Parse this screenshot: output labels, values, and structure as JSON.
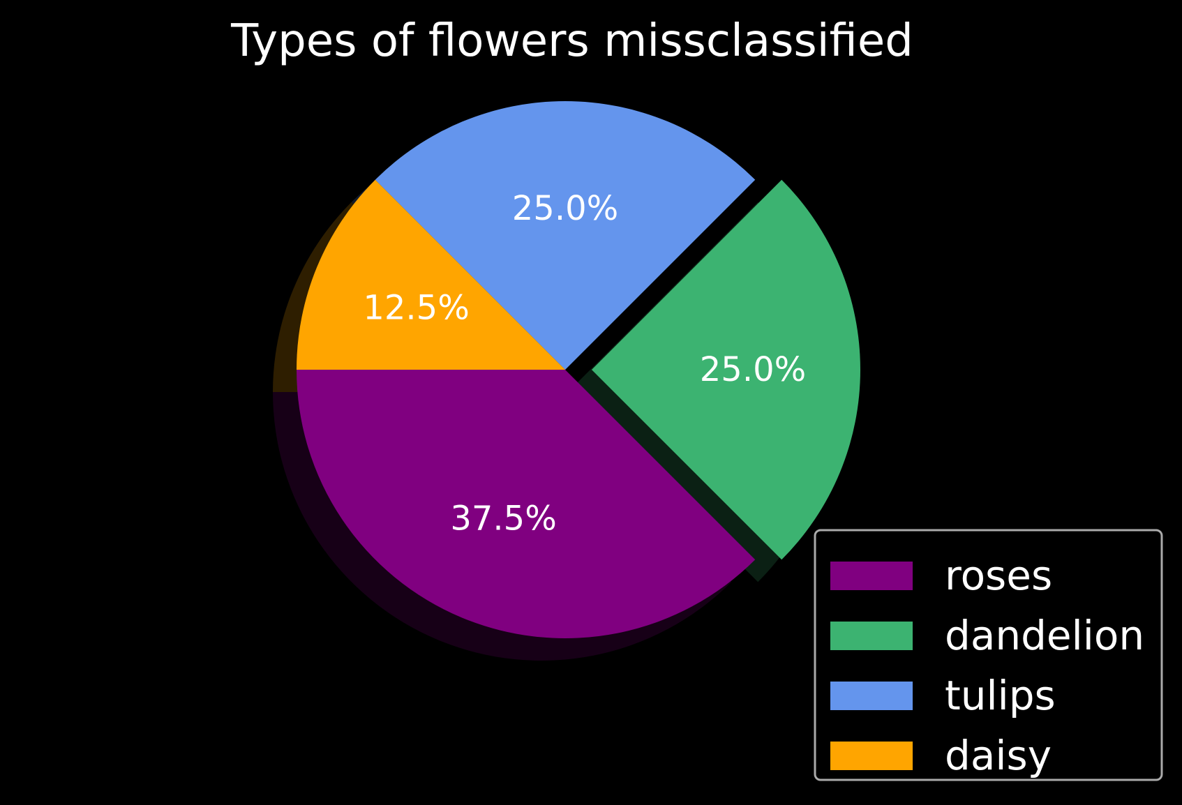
{
  "chart_data": {
    "type": "pie",
    "title": "Types of flowers missclassified",
    "slices": [
      {
        "label": "roses",
        "value": 37.5,
        "pct_label": "37.5%",
        "color": "#800080",
        "exploded": false
      },
      {
        "label": "dandelion",
        "value": 25.0,
        "pct_label": "25.0%",
        "color": "#3cb371",
        "exploded": true
      },
      {
        "label": "tulips",
        "value": 25.0,
        "pct_label": "25.0%",
        "color": "#6495ed",
        "exploded": false
      },
      {
        "label": "daisy",
        "value": 12.5,
        "pct_label": "12.5%",
        "color": "#ffa500",
        "exploded": false
      }
    ],
    "start_angle_deg": -180,
    "direction": "counterclockwise",
    "shadow": true,
    "legend_position": "lower-right",
    "background": "#000000",
    "text_color": "#ffffff",
    "legend_border_color": "#aaaaaa"
  }
}
